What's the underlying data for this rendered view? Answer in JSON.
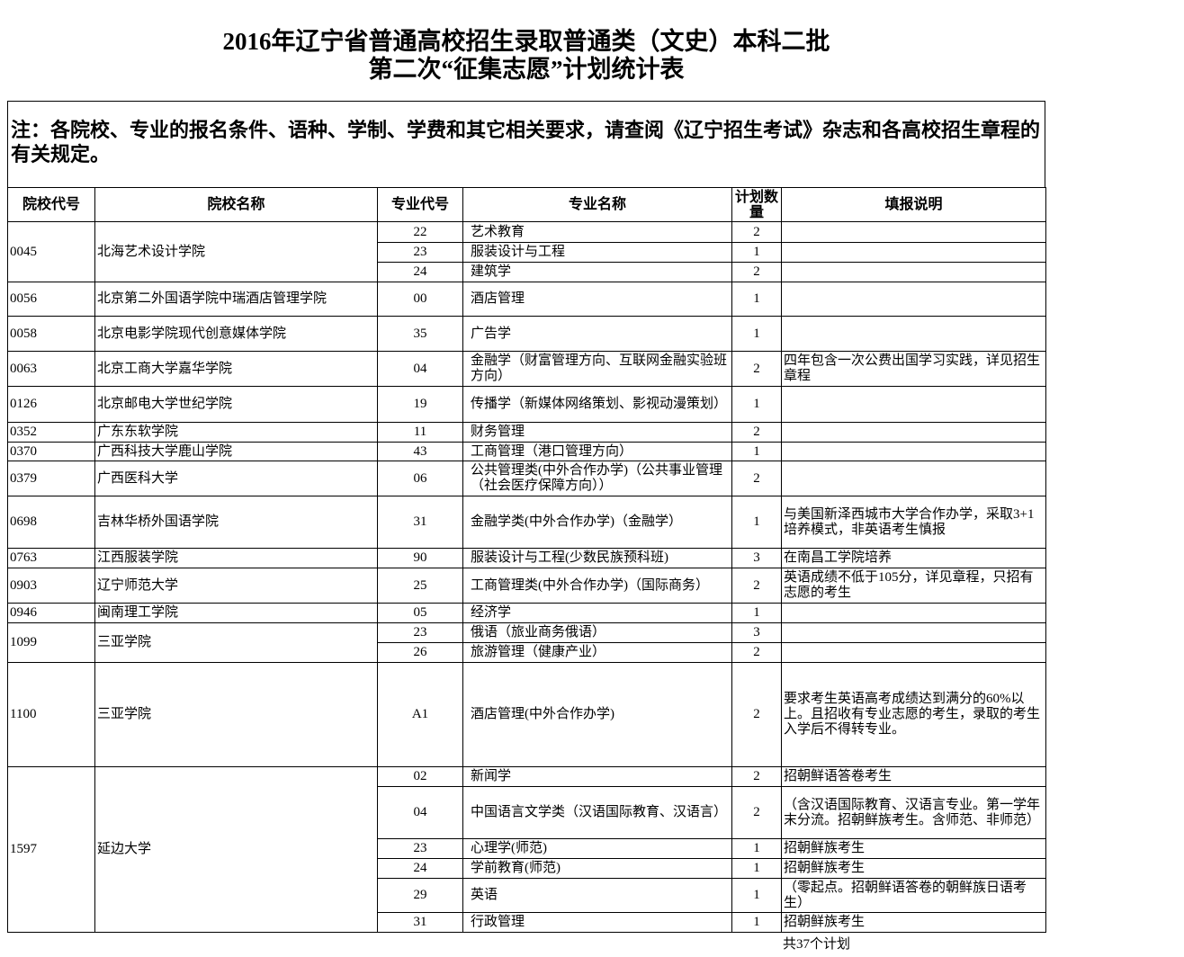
{
  "header": {
    "title": [
      "2016年辽宁省普通高校招生录取普通类（文史）本科二批",
      "第二次“征集志愿”计划统计表"
    ],
    "note": "注：各院校、专业的报名条件、语种、学制、学费和其它相关要求，请查阅《辽宁招生考试》杂志和各高校招生章程的有关规定。"
  },
  "table": {
    "columns": [
      "院校代号",
      "院校名称",
      "专业代号",
      "专业名称",
      "计划数量",
      "填报说明"
    ],
    "schools": [
      {
        "code": "0045",
        "name": "北海艺术设计学院",
        "majors": [
          {
            "code": "22",
            "name": "艺术教育",
            "plan": 2
          },
          {
            "code": "23",
            "name": "服装设计与工程",
            "plan": 1
          },
          {
            "code": "24",
            "name": "建筑学",
            "plan": 2
          }
        ]
      },
      {
        "code": "0056",
        "name": "北京第二外国语学院中瑞酒店管理学院",
        "majors": [
          {
            "code": "00",
            "name": "酒店管理",
            "plan": 1
          }
        ]
      },
      {
        "code": "0058",
        "name": "北京电影学院现代创意媒体学院",
        "majors": [
          {
            "code": "35",
            "name": "广告学",
            "plan": 1
          }
        ]
      },
      {
        "code": "0063",
        "name": "北京工商大学嘉华学院",
        "majors": [
          {
            "code": "04",
            "name": "金融学（财富管理方向、互联网金融实验班方向）",
            "plan": 2,
            "note": "四年包含一次公费出国学习实践，详见招生章程"
          }
        ]
      },
      {
        "code": "0126",
        "name": "北京邮电大学世纪学院",
        "majors": [
          {
            "code": "19",
            "name": "传播学（新媒体网络策划、影视动漫策划）",
            "plan": 1
          }
        ]
      },
      {
        "code": "0352",
        "name": "广东东软学院",
        "majors": [
          {
            "code": "11",
            "name": "财务管理",
            "plan": 2
          }
        ]
      },
      {
        "code": "0370",
        "name": "广西科技大学鹿山学院",
        "majors": [
          {
            "code": "43",
            "name": "工商管理（港口管理方向）",
            "plan": 1
          }
        ]
      },
      {
        "code": "0379",
        "name": "广西医科大学",
        "majors": [
          {
            "code": "06",
            "name": "公共管理类(中外合作办学)（公共事业管理（社会医疗保障方向））",
            "plan": 2
          }
        ]
      },
      {
        "code": "0698",
        "name": "吉林华桥外国语学院",
        "majors": [
          {
            "code": "31",
            "name": "金融学类(中外合作办学)（金融学）",
            "plan": 1,
            "note": "与美国新泽西城市大学合作办学，采取3+1培养模式，非英语考生慎报"
          }
        ]
      },
      {
        "code": "0763",
        "name": "江西服装学院",
        "majors": [
          {
            "code": "90",
            "name": "服装设计与工程(少数民族预科班)",
            "plan": 3,
            "note": "在南昌工学院培养"
          }
        ]
      },
      {
        "code": "0903",
        "name": "辽宁师范大学",
        "majors": [
          {
            "code": "25",
            "name": "工商管理类(中外合作办学)（国际商务）",
            "plan": 2,
            "note": "英语成绩不低于105分，详见章程，只招有志愿的考生"
          }
        ]
      },
      {
        "code": "0946",
        "name": "闽南理工学院",
        "majors": [
          {
            "code": "05",
            "name": "经济学",
            "plan": 1
          }
        ]
      },
      {
        "code": "1099",
        "name": "三亚学院",
        "majors": [
          {
            "code": "23",
            "name": "俄语（旅业商务俄语）",
            "plan": 3
          },
          {
            "code": "26",
            "name": "旅游管理（健康产业）",
            "plan": 2
          }
        ]
      },
      {
        "code": "1100",
        "name": "三亚学院",
        "majors": [
          {
            "code": "A1",
            "name": "酒店管理(中外合作办学)",
            "plan": 2,
            "note": "要求考生英语高考成绩达到满分的60%以上。且招收有专业志愿的考生，录取的考生入学后不得转专业。"
          }
        ]
      },
      {
        "code": "1597",
        "name": "延边大学",
        "majors": [
          {
            "code": "02",
            "name": "新闻学",
            "plan": 2,
            "note": "招朝鲜语答卷考生"
          },
          {
            "code": "04",
            "name": "中国语言文学类（汉语国际教育、汉语言）",
            "plan": 2,
            "note": "（含汉语国际教育、汉语言专业。第一学年末分流。招朝鲜族考生。含师范、非师范）"
          },
          {
            "code": "23",
            "name": "心理学(师范)",
            "plan": 1,
            "note": "招朝鲜族考生"
          },
          {
            "code": "24",
            "name": "学前教育(师范)",
            "plan": 1,
            "note": "招朝鲜族考生"
          },
          {
            "code": "29",
            "name": "英语",
            "plan": 1,
            "note": "（零起点。招朝鲜语答卷的朝鲜族日语考生）"
          },
          {
            "code": "31",
            "name": "行政管理",
            "plan": 1,
            "note": "招朝鲜族考生"
          }
        ]
      }
    ],
    "total": "共37个计划"
  }
}
